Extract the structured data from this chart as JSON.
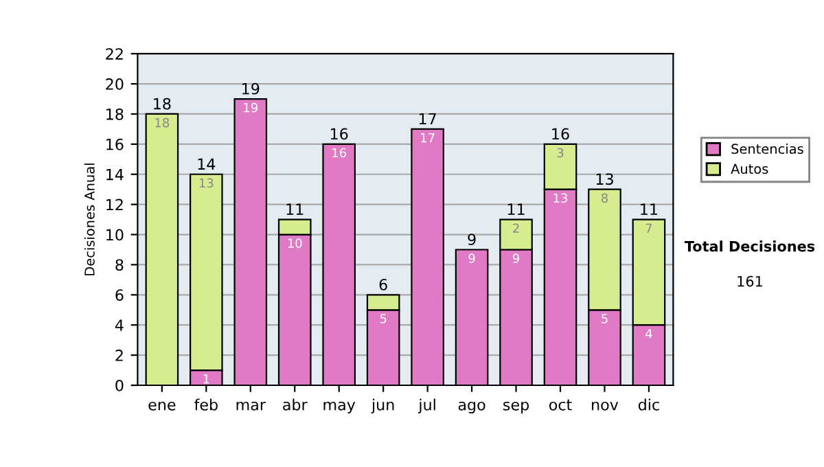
{
  "chart_data": {
    "type": "bar",
    "stacked": true,
    "ylabel": "Decisiones Anual",
    "categories": [
      "ene",
      "feb",
      "mar",
      "abr",
      "may",
      "jun",
      "jul",
      "ago",
      "sep",
      "oct",
      "nov",
      "dic"
    ],
    "series": [
      {
        "name": "Sentencias",
        "color": "#e07ac4",
        "values": [
          0,
          1,
          19,
          10,
          16,
          5,
          17,
          9,
          9,
          13,
          5,
          4
        ],
        "value_labels": [
          null,
          "1",
          "19",
          "10",
          "16",
          "5",
          "17",
          "9",
          "9",
          "13",
          "5",
          "4"
        ]
      },
      {
        "name": "Autos",
        "color": "#d6ec8e",
        "values": [
          18,
          13,
          0,
          1,
          0,
          1,
          0,
          0,
          2,
          3,
          8,
          7
        ],
        "value_labels": [
          "18",
          "13",
          null,
          null,
          null,
          null,
          null,
          null,
          "2",
          "3",
          "8",
          "7"
        ]
      }
    ],
    "totals": [
      "18",
      "14",
      "19",
      "11",
      "16",
      "6",
      "17",
      "9",
      "11",
      "16",
      "13",
      "11"
    ],
    "ylim": [
      0,
      22
    ],
    "yticks": [
      0,
      2,
      4,
      6,
      8,
      10,
      12,
      14,
      16,
      18,
      20,
      22
    ],
    "grid": "y",
    "legend": "right",
    "annotations": [
      "Total Decisiones",
      "161"
    ]
  }
}
